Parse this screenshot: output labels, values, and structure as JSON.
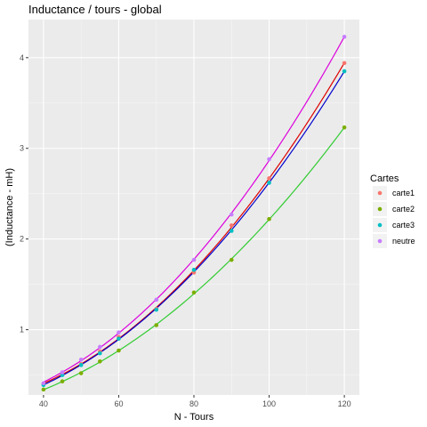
{
  "chart_data": {
    "type": "scatter",
    "title": "Inductance / tours - global",
    "xlabel": "N - Tours",
    "ylabel": "(Inductance - mH)",
    "xlim": [
      36,
      124
    ],
    "ylim": [
      0.28,
      4.42
    ],
    "x_ticks": [
      40,
      60,
      80,
      100,
      120
    ],
    "y_ticks": [
      1,
      2,
      3,
      4
    ],
    "grid": true,
    "legend_position": "right",
    "legend_title": "Cartes",
    "series": [
      {
        "name": "carte1",
        "color": "#F8766D",
        "line_color": "#DD0000",
        "x": [
          40,
          45,
          50,
          55,
          60,
          70,
          80,
          90,
          100,
          120
        ],
        "y": [
          0.4,
          0.51,
          0.62,
          0.76,
          0.92,
          1.23,
          1.63,
          2.15,
          2.67,
          3.94
        ]
      },
      {
        "name": "carte2",
        "color": "#7CAE00",
        "line_color": "#33CC33",
        "x": [
          40,
          45,
          50,
          55,
          60,
          70,
          80,
          90,
          100,
          120
        ],
        "y": [
          0.34,
          0.43,
          0.52,
          0.65,
          0.77,
          1.05,
          1.41,
          1.77,
          2.22,
          3.23
        ]
      },
      {
        "name": "carte3",
        "color": "#00BFC4",
        "line_color": "#0000CC",
        "x": [
          40,
          45,
          50,
          55,
          60,
          70,
          80,
          90,
          100,
          120
        ],
        "y": [
          0.39,
          0.5,
          0.61,
          0.74,
          0.9,
          1.22,
          1.66,
          2.09,
          2.62,
          3.85
        ]
      },
      {
        "name": "neutre",
        "color": "#C77CFF",
        "line_color": "#DD00DD",
        "x": [
          40,
          45,
          50,
          55,
          60,
          70,
          80,
          90,
          100,
          120
        ],
        "y": [
          0.41,
          0.53,
          0.67,
          0.81,
          0.97,
          1.33,
          1.77,
          2.27,
          2.88,
          4.23
        ]
      }
    ]
  }
}
